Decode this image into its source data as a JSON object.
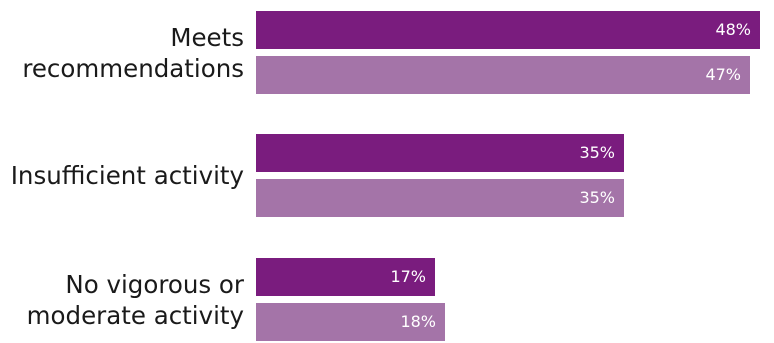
{
  "chart_data": {
    "type": "bar",
    "orientation": "horizontal",
    "categories": [
      "Meets\nrecommendations",
      "Insufficient activity",
      "No vigorous or\nmoderate activity"
    ],
    "series": [
      {
        "values": [
          48,
          35,
          17
        ],
        "data_labels": [
          "48%",
          "35%",
          "17%"
        ],
        "color": "#7a1c7e"
      },
      {
        "values": [
          47,
          35,
          18
        ],
        "data_labels": [
          "47%",
          "35%",
          "18%"
        ],
        "color": "#a474a8"
      }
    ],
    "title": "",
    "xlabel": "",
    "ylabel": "",
    "xlim": [
      0,
      49
    ],
    "grid": false,
    "legend": "none"
  }
}
